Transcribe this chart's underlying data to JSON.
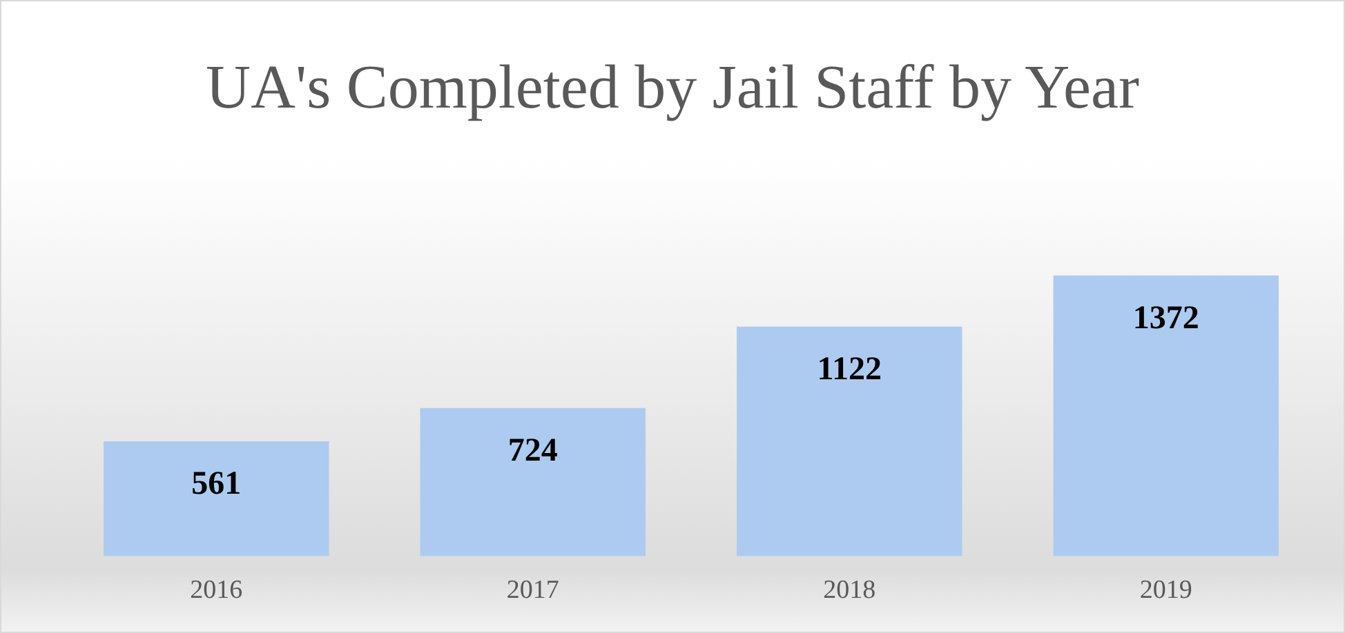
{
  "chart_data": {
    "type": "bar",
    "title": "UA's Completed by Jail Staff by Year",
    "categories": [
      "2016",
      "2017",
      "2018",
      "2019"
    ],
    "values": [
      561,
      724,
      1122,
      1372
    ],
    "color": "#adcbf0",
    "data_labels": true,
    "grid": false,
    "legend": false,
    "tick_labels": "x"
  }
}
